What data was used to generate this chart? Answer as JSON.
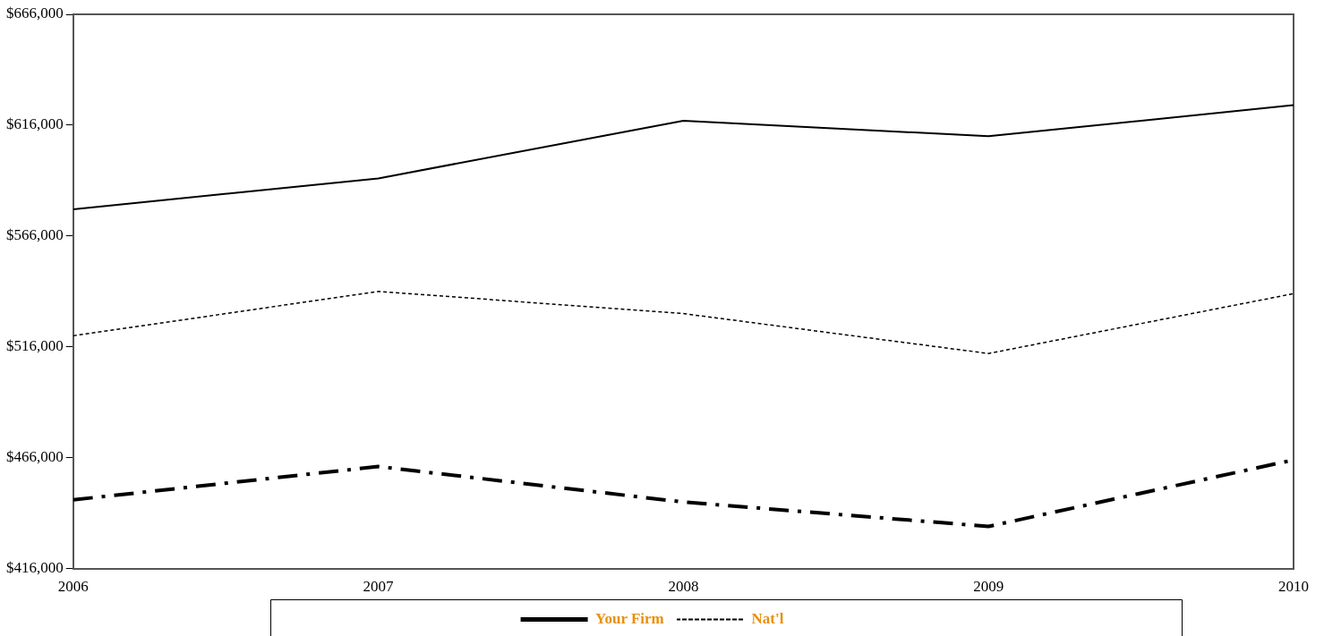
{
  "chart_data": {
    "type": "line",
    "x": [
      2006,
      2007,
      2008,
      2009,
      2010
    ],
    "xlim": [
      2006,
      2010
    ],
    "xticks": [
      2006,
      2007,
      2008,
      2009,
      2010
    ],
    "ylim": [
      416000,
      666000
    ],
    "yticks": [
      {
        "value": 416000,
        "label": "$416,000"
      },
      {
        "value": 466000,
        "label": "$466,000"
      },
      {
        "value": 516000,
        "label": "$516,000"
      },
      {
        "value": 566000,
        "label": "$566,000"
      },
      {
        "value": 616000,
        "label": "$616,000"
      },
      {
        "value": 666000,
        "label": "$666,000"
      }
    ],
    "grid": false,
    "legend": "bottom",
    "marker": "none",
    "series": [
      {
        "name": "Your Firm",
        "color": "#000000",
        "line_style": "solid",
        "values": [
          null,
          null,
          null,
          null,
          null
        ]
      },
      {
        "name": "Nat'l",
        "color": "#000000",
        "line_style": "dashed",
        "values": [
          521000,
          541000,
          531000,
          513000,
          540000
        ]
      },
      {
        "color": "#000000",
        "line_style": "solid",
        "values": [
          578000,
          592000,
          618000,
          611000,
          625000
        ]
      },
      {
        "color": "#000000",
        "line_style": "dashdot",
        "values": [
          447000,
          462000,
          446000,
          435000,
          465000
        ]
      }
    ]
  }
}
